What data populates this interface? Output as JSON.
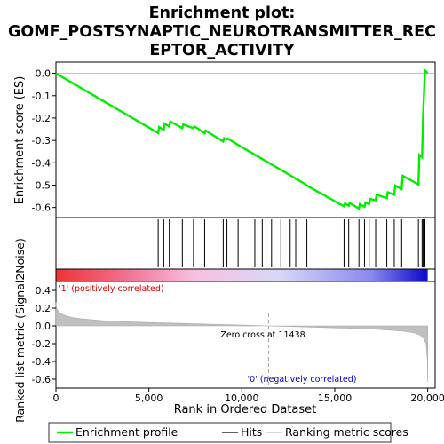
{
  "chart_data": {
    "type": "line",
    "title_lines": [
      "Enrichment plot:",
      "GOMF_POSTSYNAPTIC_NEUROTRANSMITTER_REC",
      "EPTOR_ACTIVITY"
    ],
    "es_panel": {
      "ylabel": "Enrichment score (ES)",
      "yticks": [
        0.0,
        -0.1,
        -0.2,
        -0.3,
        -0.4,
        -0.5,
        -0.6
      ],
      "ylim": [
        -0.645,
        0.05
      ],
      "line_color": "#00ee00",
      "series": {
        "name": "Enrichment profile",
        "x": [
          0,
          5500,
          5550,
          5800,
          5850,
          6100,
          6150,
          6800,
          6850,
          7400,
          7450,
          8000,
          8050,
          9000,
          9050,
          9200,
          9250,
          9800,
          13400,
          13500,
          15500,
          15550,
          15750,
          15800,
          16300,
          16350,
          16600,
          16650,
          16850,
          16900,
          17200,
          17250,
          17800,
          17850,
          18200,
          18250,
          18600,
          18650,
          19500,
          19550,
          19700,
          19750,
          19850,
          20000
        ],
        "y": [
          0.0,
          -0.267,
          -0.24,
          -0.253,
          -0.225,
          -0.238,
          -0.215,
          -0.245,
          -0.228,
          -0.246,
          -0.237,
          -0.268,
          -0.256,
          -0.305,
          -0.29,
          -0.295,
          -0.292,
          -0.32,
          -0.495,
          -0.502,
          -0.595,
          -0.582,
          -0.592,
          -0.58,
          -0.605,
          -0.585,
          -0.597,
          -0.578,
          -0.585,
          -0.562,
          -0.568,
          -0.543,
          -0.558,
          -0.532,
          -0.543,
          -0.502,
          -0.518,
          -0.458,
          -0.497,
          -0.365,
          -0.375,
          -0.195,
          0.013,
          0.002
        ]
      }
    },
    "hits_panel": {
      "x": [
        5500,
        5800,
        6100,
        6800,
        7400,
        8000,
        9000,
        9200,
        9800,
        10700,
        11100,
        11300,
        11600,
        12100,
        12600,
        12900,
        13500,
        15500,
        15750,
        16300,
        16600,
        16850,
        17200,
        17800,
        18200,
        18600,
        19500,
        19700,
        19750,
        19850
      ]
    },
    "metric_panel": {
      "ylabel": "Ranked list metric (Signal2Noise)",
      "yticks": [
        0.4,
        0.2,
        0.0,
        -0.2,
        -0.4,
        -0.6
      ],
      "ylim": [
        -0.7,
        0.5
      ],
      "fill_color": "#c0c0c0",
      "curve": {
        "x": [
          0,
          30,
          80,
          150,
          250,
          400,
          600,
          900,
          1300,
          1800,
          2500,
          3500,
          5000,
          7000,
          9000,
          11438,
          13500,
          15500,
          17000,
          18000,
          18800,
          19300,
          19600,
          19800,
          19920,
          19980,
          20000
        ],
        "y": [
          0.27,
          0.21,
          0.18,
          0.16,
          0.14,
          0.125,
          0.11,
          0.095,
          0.082,
          0.072,
          0.06,
          0.05,
          0.038,
          0.027,
          0.015,
          0.0,
          -0.012,
          -0.025,
          -0.035,
          -0.048,
          -0.062,
          -0.08,
          -0.105,
          -0.145,
          -0.21,
          -0.38,
          -0.63
        ]
      },
      "zero_cross_label": "Zero cross at 11438",
      "zero_cross_x": 11438,
      "pos_label": "'1' (positively correlated)",
      "neg_label": "'0' (negatively correlated)",
      "pos_label_color": "#dd0000",
      "neg_label_color": "#0000cc"
    },
    "xaxis": {
      "label": "Rank in Ordered Dataset",
      "ticks": [
        0,
        5000,
        10000,
        15000,
        20000
      ],
      "tick_labels": [
        "0",
        "5,000",
        "10,000",
        "15,000",
        "20,000"
      ],
      "xlim": [
        0,
        20400
      ]
    },
    "heat_colors": [
      {
        "x": 0,
        "color": "#ee3333"
      },
      {
        "x": 3700,
        "color": "#f07090"
      },
      {
        "x": 7400,
        "color": "#f8bfe0"
      },
      {
        "x": 12000,
        "color": "#d8d8f8"
      },
      {
        "x": 17000,
        "color": "#8888ee"
      },
      {
        "x": 19800,
        "color": "#1010cc"
      }
    ],
    "legend": {
      "entries": [
        "Enrichment profile",
        "Hits",
        "Ranking metric scores"
      ],
      "colors": [
        "#00ee00",
        "#000000",
        "#c0c0c0"
      ],
      "placement": "bottom"
    }
  }
}
